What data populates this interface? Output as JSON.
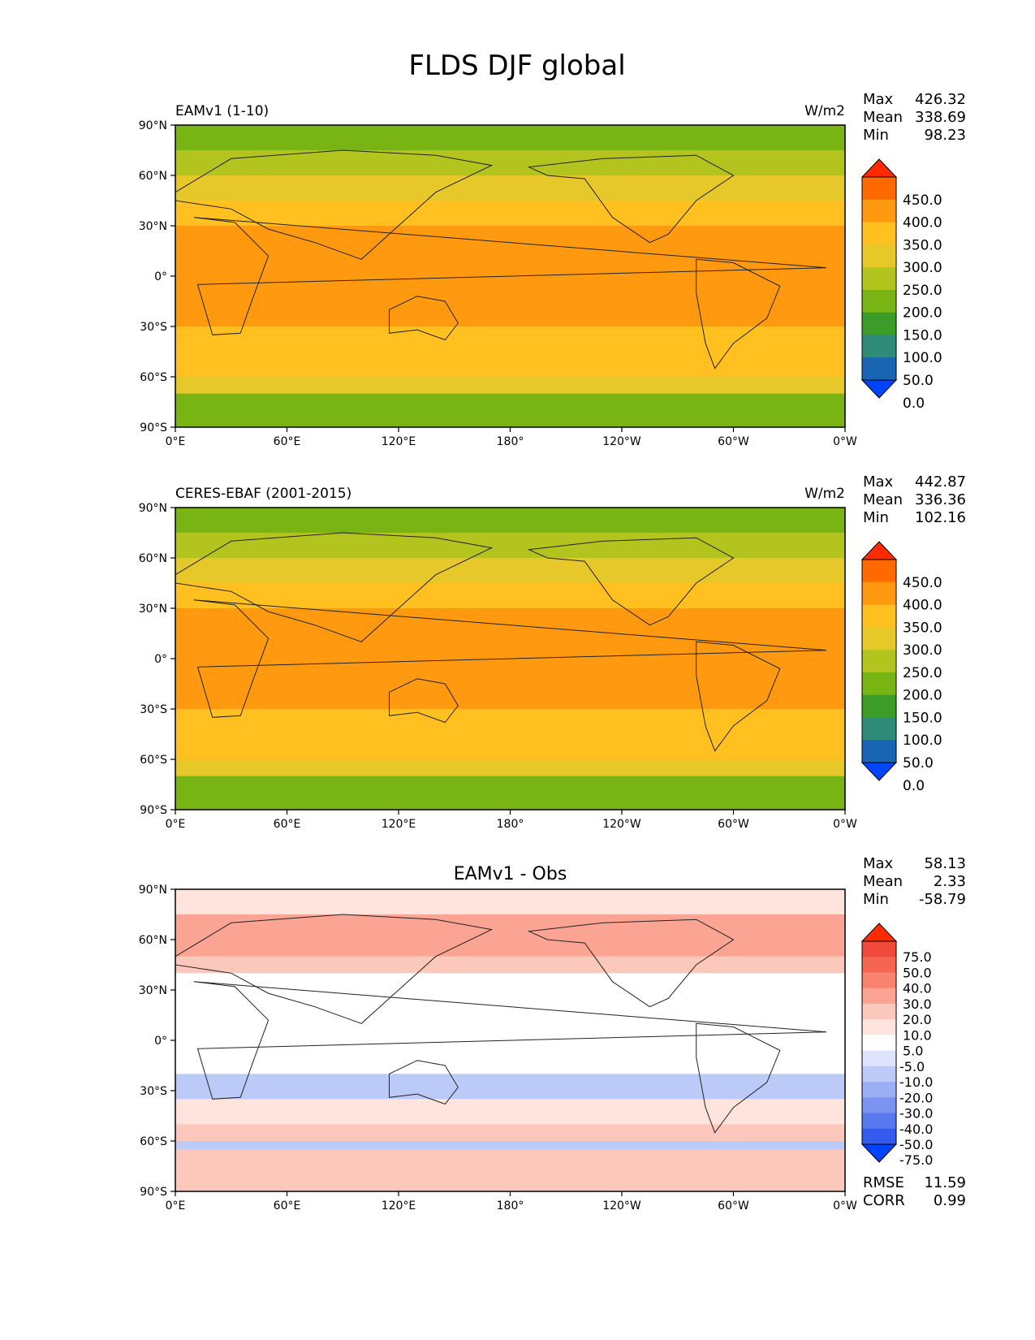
{
  "figure_title": "FLDS DJF global",
  "chart_data": [
    {
      "type": "heatmap",
      "title": "",
      "left_label": "EAMv1 (1-10)",
      "units": "W/m2",
      "stats": [
        {
          "label": "Max",
          "value": "426.32"
        },
        {
          "label": "Mean",
          "value": "338.69"
        },
        {
          "label": "Min",
          "value": "98.23"
        }
      ],
      "colorbar_levels": [
        "450.0",
        "400.0",
        "350.0",
        "300.0",
        "250.0",
        "200.0",
        "150.0",
        "100.0",
        "50.0",
        "0.0"
      ],
      "colorbar_colors": [
        "#ff2a00",
        "#ff6a00",
        "#ff9a10",
        "#ffc020",
        "#e6c82a",
        "#b4c41e",
        "#78b414",
        "#3c9c28",
        "#2e8c78",
        "#1a64b4",
        "#0044ff"
      ],
      "x_ticks": [
        "0°E",
        "60°E",
        "120°E",
        "180°",
        "120°W",
        "60°W",
        "0°W"
      ],
      "y_ticks": [
        "90°N",
        "60°N",
        "30°N",
        "0°",
        "30°S",
        "60°S",
        "90°S"
      ],
      "xlim": [
        0,
        360
      ],
      "ylim": [
        -90,
        90
      ],
      "zonal_mean_bands": [
        {
          "lat": [
            75,
            90
          ],
          "value": 190
        },
        {
          "lat": [
            60,
            75
          ],
          "value": 240
        },
        {
          "lat": [
            45,
            60
          ],
          "value": 280
        },
        {
          "lat": [
            30,
            45
          ],
          "value": 320
        },
        {
          "lat": [
            15,
            30
          ],
          "value": 355
        },
        {
          "lat": [
            -15,
            15
          ],
          "value": 395
        },
        {
          "lat": [
            -30,
            -15
          ],
          "value": 370
        },
        {
          "lat": [
            -45,
            -30
          ],
          "value": 340
        },
        {
          "lat": [
            -60,
            -45
          ],
          "value": 310
        },
        {
          "lat": [
            -70,
            -60
          ],
          "value": 270
        },
        {
          "lat": [
            -90,
            -70
          ],
          "value": 150
        }
      ]
    },
    {
      "type": "heatmap",
      "title": "",
      "left_label": "CERES-EBAF (2001-2015)",
      "units": "W/m2",
      "stats": [
        {
          "label": "Max",
          "value": "442.87"
        },
        {
          "label": "Mean",
          "value": "336.36"
        },
        {
          "label": "Min",
          "value": "102.16"
        }
      ],
      "colorbar_levels": [
        "450.0",
        "400.0",
        "350.0",
        "300.0",
        "250.0",
        "200.0",
        "150.0",
        "100.0",
        "50.0",
        "0.0"
      ],
      "colorbar_colors": [
        "#ff2a00",
        "#ff6a00",
        "#ff9a10",
        "#ffc020",
        "#e6c82a",
        "#b4c41e",
        "#78b414",
        "#3c9c28",
        "#2e8c78",
        "#1a64b4",
        "#0044ff"
      ],
      "x_ticks": [
        "0°E",
        "60°E",
        "120°E",
        "180°",
        "120°W",
        "60°W",
        "0°W"
      ],
      "y_ticks": [
        "90°N",
        "60°N",
        "30°N",
        "0°",
        "30°S",
        "60°S",
        "90°S"
      ],
      "xlim": [
        0,
        360
      ],
      "ylim": [
        -90,
        90
      ],
      "zonal_mean_bands": [
        {
          "lat": [
            75,
            90
          ],
          "value": 170
        },
        {
          "lat": [
            60,
            75
          ],
          "value": 230
        },
        {
          "lat": [
            45,
            60
          ],
          "value": 275
        },
        {
          "lat": [
            30,
            45
          ],
          "value": 320
        },
        {
          "lat": [
            15,
            30
          ],
          "value": 355
        },
        {
          "lat": [
            -15,
            15
          ],
          "value": 395
        },
        {
          "lat": [
            -30,
            -15
          ],
          "value": 370
        },
        {
          "lat": [
            -45,
            -30
          ],
          "value": 340
        },
        {
          "lat": [
            -60,
            -45
          ],
          "value": 305
        },
        {
          "lat": [
            -70,
            -60
          ],
          "value": 265
        },
        {
          "lat": [
            -90,
            -70
          ],
          "value": 170
        }
      ]
    },
    {
      "type": "heatmap",
      "title": "EAMv1 - Obs",
      "left_label": "",
      "units": "",
      "stats": [
        {
          "label": "Max",
          "value": "58.13"
        },
        {
          "label": "Mean",
          "value": "2.33"
        },
        {
          "label": "Min",
          "value": "-58.79"
        }
      ],
      "colorbar_levels": [
        "75.0",
        "50.0",
        "40.0",
        "30.0",
        "20.0",
        "10.0",
        "5.0",
        "-5.0",
        "-10.0",
        "-20.0",
        "-30.0",
        "-40.0",
        "-50.0",
        "-75.0"
      ],
      "colorbar_colors": [
        "#ff2a00",
        "#f04a3c",
        "#f46650",
        "#f88470",
        "#fba494",
        "#fdc8bc",
        "#fee4dc",
        "#ffffff",
        "#dde4fb",
        "#bccaf8",
        "#9bb0f4",
        "#7a94f0",
        "#5878ef",
        "#355aef",
        "#0044ff"
      ],
      "x_ticks": [
        "0°E",
        "60°E",
        "120°E",
        "180°",
        "120°W",
        "60°W",
        "0°W"
      ],
      "y_ticks": [
        "90°N",
        "60°N",
        "30°N",
        "0°",
        "30°S",
        "60°S",
        "90°S"
      ],
      "xlim": [
        0,
        360
      ],
      "ylim": [
        -90,
        90
      ],
      "metrics": [
        {
          "label": "RMSE",
          "value": "11.59"
        },
        {
          "label": "CORR",
          "value": "0.99"
        }
      ],
      "zonal_mean_bands": [
        {
          "lat": [
            75,
            90
          ],
          "value": 8
        },
        {
          "lat": [
            50,
            75
          ],
          "value": 22
        },
        {
          "lat": [
            40,
            50
          ],
          "value": 12
        },
        {
          "lat": [
            20,
            40
          ],
          "value": 0
        },
        {
          "lat": [
            -20,
            20
          ],
          "value": 0
        },
        {
          "lat": [
            -35,
            -20
          ],
          "value": -12
        },
        {
          "lat": [
            -50,
            -35
          ],
          "value": 7
        },
        {
          "lat": [
            -60,
            -50
          ],
          "value": 12
        },
        {
          "lat": [
            -65,
            -60
          ],
          "value": -12
        },
        {
          "lat": [
            -80,
            -65
          ],
          "value": 18
        },
        {
          "lat": [
            -90,
            -80
          ],
          "value": 12
        }
      ]
    }
  ]
}
